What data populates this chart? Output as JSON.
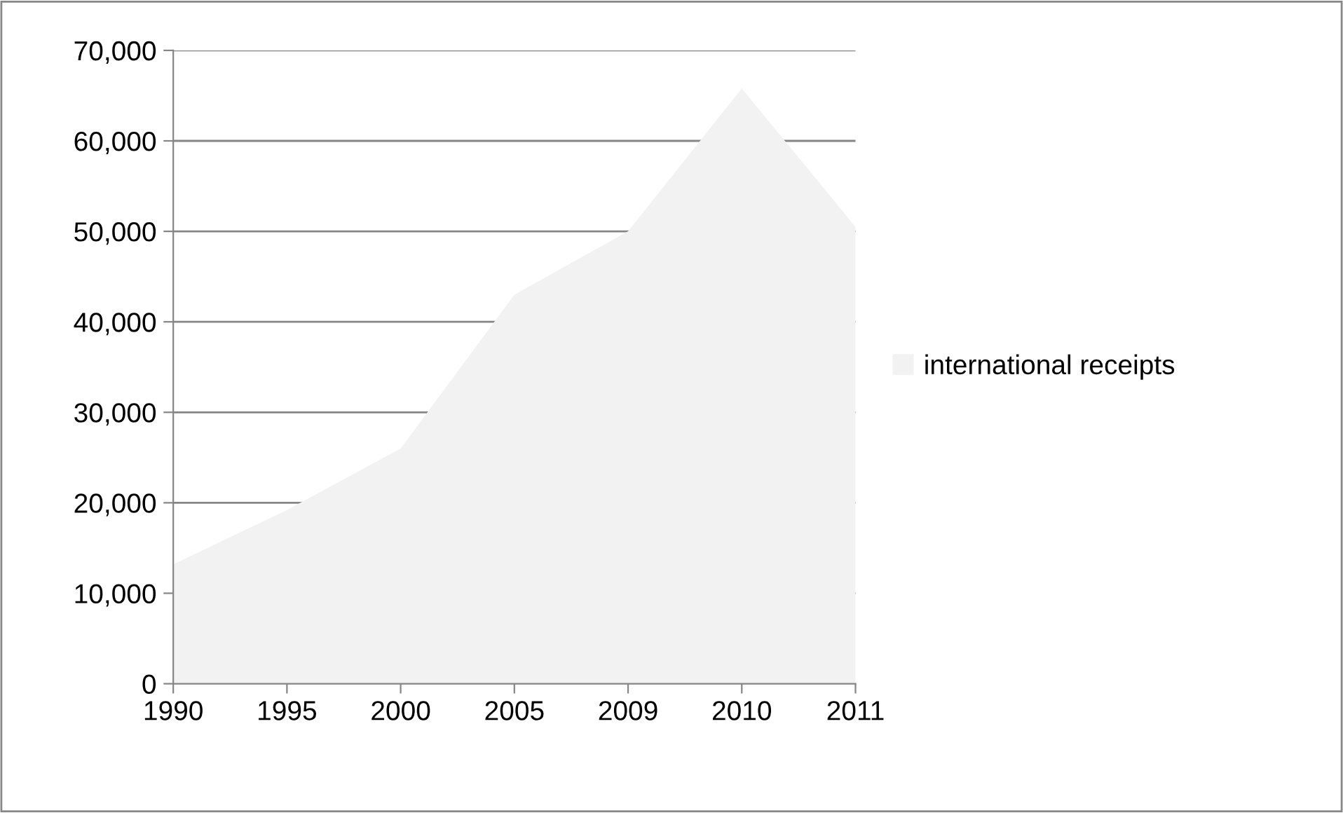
{
  "chart_data": {
    "type": "area",
    "categories": [
      "1990",
      "1995",
      "2000",
      "2005",
      "2009",
      "2010",
      "2011"
    ],
    "series": [
      {
        "name": "international receipts",
        "color": "#f2f2f2",
        "values": [
          13200,
          19200,
          26000,
          43000,
          50000,
          65800,
          50500
        ]
      }
    ],
    "ylim": [
      0,
      70000
    ],
    "yticks": [
      {
        "value": 0,
        "label": "0"
      },
      {
        "value": 10000,
        "label": "10,000"
      },
      {
        "value": 20000,
        "label": "20,000"
      },
      {
        "value": 30000,
        "label": "30,000"
      },
      {
        "value": 40000,
        "label": "40,000"
      },
      {
        "value": 50000,
        "label": "50,000"
      },
      {
        "value": 60000,
        "label": "60,000"
      },
      {
        "value": 70000,
        "label": "70,000"
      }
    ],
    "grid": "y",
    "legend": "right"
  }
}
